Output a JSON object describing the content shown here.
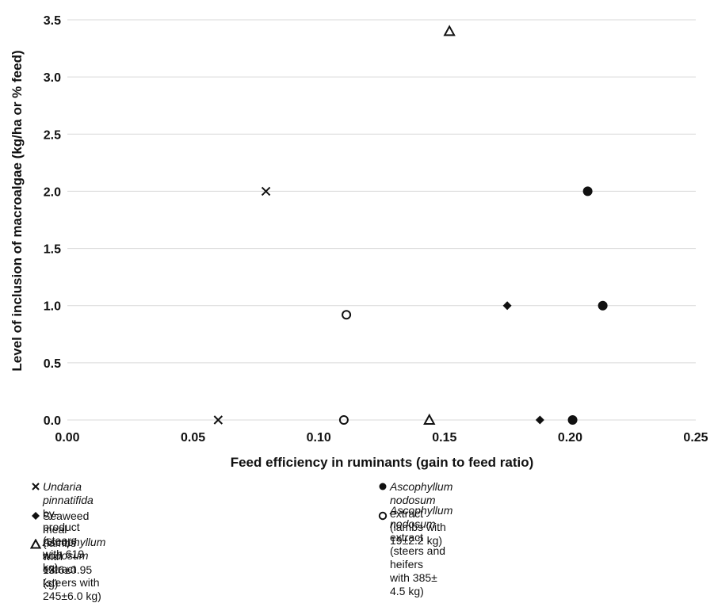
{
  "chart_data": {
    "type": "scatter",
    "xlabel": "Feed efficiency in ruminants (gain to feed ratio)",
    "ylabel": "Level of inclusion of macroalgae (kg/ha or % feed)",
    "xlim": [
      0.0,
      0.25
    ],
    "ylim": [
      0.0,
      3.5
    ],
    "x_ticks": [
      "0.00",
      "0.05",
      "0.10",
      "0.15",
      "0.20",
      "0.25"
    ],
    "y_ticks": [
      "0.0",
      "0.5",
      "1.0",
      "1.5",
      "2.0",
      "2.5",
      "3.0",
      "3.5"
    ],
    "grid": "horizontal",
    "legend_position": "bottom",
    "series": [
      {
        "name_italic": "Undaria pinnatifida",
        "name_rest": " by-product (steers with 619 kg)",
        "marker": "x",
        "points": [
          [
            0.06,
            0.0
          ],
          [
            0.079,
            2.0
          ]
        ]
      },
      {
        "name_italic": "Ascophyllum nodosum",
        "name_rest": " extract (lambs with 19±2.2 kg)",
        "marker": "filled-circle",
        "points": [
          [
            0.201,
            0.0
          ],
          [
            0.207,
            2.0
          ],
          [
            0.213,
            1.0
          ]
        ]
      },
      {
        "name_italic": "",
        "name_rest": "Seaweed meal (lambs with 13.6±0.95 kg)",
        "marker": "filled-diamond",
        "points": [
          [
            0.175,
            1.0
          ],
          [
            0.188,
            0.0
          ]
        ]
      },
      {
        "name_italic": "Ascophyllum nodosum",
        "name_rest": " extract (steers and heifers",
        "name_line2": "with 385± 4.5 kg)",
        "marker": "open-circle",
        "points": [
          [
            0.11,
            0.0
          ],
          [
            0.111,
            0.92
          ]
        ]
      },
      {
        "name_italic": "Ascophyllum nodosum",
        "name_rest": " extract (steers with 245±6.0 kg)",
        "marker": "open-triangle",
        "points": [
          [
            0.144,
            0.0
          ],
          [
            0.152,
            3.4
          ]
        ]
      }
    ]
  }
}
